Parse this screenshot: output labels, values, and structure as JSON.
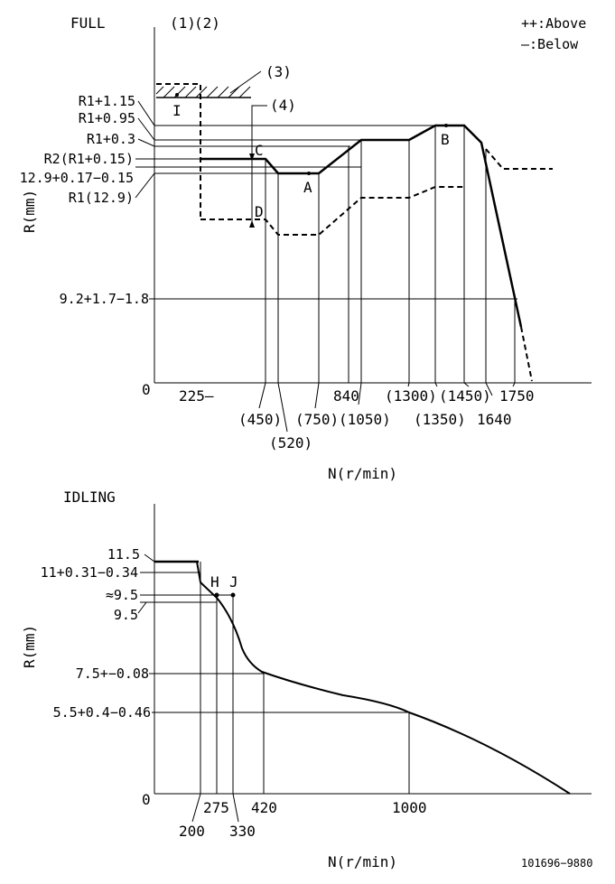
{
  "full": {
    "title": "FULL",
    "marks": [
      "(1)",
      "(2)"
    ],
    "legend": {
      "above": "++:Above",
      "below": "—:Below"
    },
    "callouts": {
      "c3": "(3)",
      "c4": "(4)"
    },
    "points": {
      "I": "I",
      "C": "C",
      "D": "D",
      "A": "A",
      "B": "B"
    },
    "ylabel": "R(mm)",
    "xlabel": "N(r/min)",
    "origin": "0",
    "y_ticks": [
      "R1+1.15",
      "R1+0.95",
      "R1+0.3",
      "R2(R1+0.15)",
      "12.9+0.17−0.15",
      "R1(12.9)",
      "9.2+1.7−1.8"
    ],
    "x_ticks": [
      "225—",
      "(450)",
      "(520)",
      "(750)",
      "840",
      "(1050)",
      "(1300)",
      "(1350)",
      "(1450)",
      "1640",
      "1750"
    ]
  },
  "idling": {
    "title": "IDLING",
    "points": {
      "H": "H",
      "J": "J"
    },
    "ylabel": "R(mm)",
    "xlabel": "N(r/min)",
    "origin": "0",
    "y_ticks": [
      "11.5",
      "11+0.31−0.34",
      "≈9.5",
      "9.5",
      "7.5+−0.08",
      "5.5+0.4−0.46"
    ],
    "x_ticks": [
      "200",
      "275",
      "330",
      "420",
      "1000"
    ]
  },
  "part_number": "101696−9880"
}
